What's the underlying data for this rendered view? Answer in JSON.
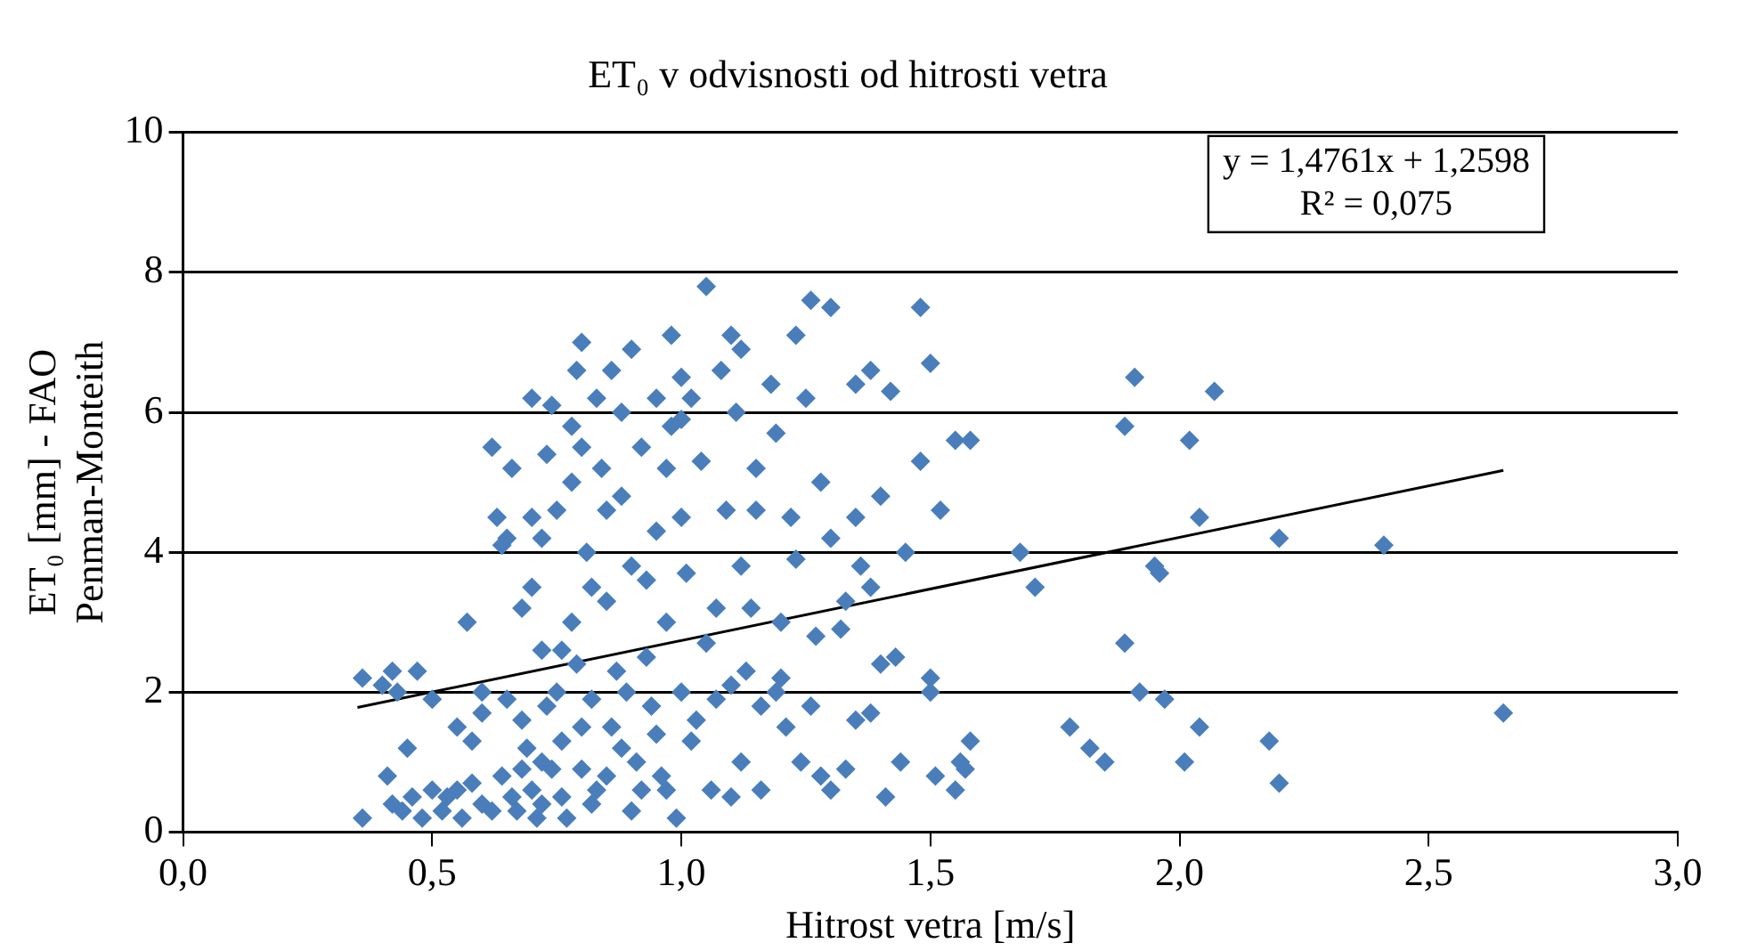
{
  "chart_data": {
    "type": "scatter",
    "title": "ET₀ v odvisnosti od hitrosti vetra",
    "xlabel": "Hitrost vetra [m/s]",
    "ylabel": "ET₀ [mm] - FAO Penman-Monteith",
    "xlim": [
      0,
      3
    ],
    "xticks": [
      {
        "value": 0,
        "label": "0,0"
      },
      {
        "value": 0.5,
        "label": "0,5"
      },
      {
        "value": 1,
        "label": "1,0"
      },
      {
        "value": 1.5,
        "label": "1,5"
      },
      {
        "value": 2,
        "label": "2,0"
      },
      {
        "value": 2.5,
        "label": "2,5"
      },
      {
        "value": 3,
        "label": "3,0"
      }
    ],
    "ylim": [
      0,
      10
    ],
    "yticks": [
      0,
      2,
      4,
      6,
      8,
      10
    ],
    "grid": "y",
    "legend": false,
    "marker": "diamond",
    "annotations": [
      "y = 1,4761x + 1,2598",
      "R² = 0,075"
    ],
    "series": [
      {
        "type": "scatter",
        "color": "#4a7ebb",
        "x": [
          0.36,
          0.36,
          0.4,
          0.42,
          0.43,
          0.41,
          0.42,
          0.44,
          0.45,
          0.46,
          0.47,
          0.48,
          0.5,
          0.5,
          0.52,
          0.53,
          0.55,
          0.55,
          0.56,
          0.57,
          0.58,
          0.58,
          0.6,
          0.6,
          0.6,
          0.62,
          0.63,
          0.64,
          0.65,
          0.66,
          0.67,
          0.68,
          0.68,
          0.7,
          0.7,
          0.7,
          0.71,
          0.72,
          0.72,
          0.73,
          0.74,
          0.75,
          0.75,
          0.76,
          0.78,
          0.78,
          0.79,
          0.8,
          0.8,
          0.8,
          0.81,
          0.82,
          0.83,
          0.84,
          0.85,
          0.85,
          0.86,
          0.87,
          0.88,
          0.88,
          0.9,
          0.9,
          0.9,
          0.92,
          0.93,
          0.94,
          0.95,
          0.95,
          0.96,
          0.97,
          0.98,
          0.98,
          0.99,
          1.0,
          1.0,
          1.0,
          1.01,
          1.02,
          1.04,
          1.05,
          1.05,
          1.06,
          1.08,
          1.09,
          1.1,
          1.1,
          1.12,
          1.12,
          1.14,
          1.15,
          1.16,
          1.18,
          1.19,
          1.2,
          1.21,
          1.22,
          1.23,
          1.25,
          1.26,
          1.27,
          1.28,
          1.3,
          1.3,
          1.32,
          1.33,
          1.35,
          1.36,
          1.38,
          1.38,
          1.4,
          1.41,
          1.42,
          1.43,
          1.44,
          1.48,
          1.48,
          1.5,
          1.5,
          1.51,
          1.52,
          1.55,
          1.56,
          1.57,
          1.58,
          1.58,
          1.55,
          1.68,
          1.71,
          1.78,
          1.82,
          1.85,
          1.89,
          1.89,
          1.91,
          1.92,
          1.95,
          1.96,
          1.97,
          2.01,
          2.02,
          2.04,
          2.04,
          2.07,
          2.18,
          2.2,
          2.2,
          2.41,
          2.65,
          0.62,
          0.64,
          0.65,
          0.66,
          0.69,
          0.7,
          0.72,
          0.73,
          0.74,
          0.76,
          0.77,
          0.79,
          0.8,
          0.82,
          0.83,
          0.86,
          0.89,
          0.91,
          0.92,
          0.95,
          0.97,
          1.03,
          1.07,
          1.1,
          1.13,
          1.16,
          1.19,
          1.24,
          1.26,
          1.3,
          1.35,
          1.4,
          1.33,
          1.2,
          1.12,
          1.07,
          0.93,
          0.82,
          0.76,
          0.68,
          0.72,
          0.85,
          0.97,
          1.0,
          1.15,
          1.28,
          1.35,
          1.23,
          0.88,
          0.78,
          1.02,
          1.11,
          1.5,
          1.45,
          1.38
        ],
        "values": [
          0.2,
          2.2,
          2.1,
          2.3,
          2.0,
          0.8,
          0.4,
          0.3,
          1.2,
          0.5,
          2.3,
          0.2,
          1.9,
          0.6,
          0.3,
          0.5,
          0.6,
          1.5,
          0.2,
          3.0,
          0.7,
          1.3,
          0.4,
          2.0,
          1.7,
          5.5,
          4.5,
          4.1,
          4.2,
          5.2,
          0.3,
          0.9,
          1.6,
          6.2,
          3.5,
          4.5,
          0.2,
          2.6,
          1.0,
          5.4,
          6.1,
          4.6,
          2.0,
          0.5,
          3.0,
          5.0,
          6.6,
          7.0,
          5.5,
          1.5,
          4.0,
          0.4,
          6.2,
          5.2,
          3.3,
          0.8,
          6.6,
          2.3,
          4.8,
          1.2,
          6.9,
          3.8,
          0.3,
          5.5,
          2.5,
          1.8,
          6.2,
          4.3,
          0.8,
          3.0,
          7.1,
          5.8,
          0.2,
          6.5,
          4.5,
          2.0,
          3.7,
          1.3,
          5.3,
          7.8,
          2.7,
          0.6,
          6.6,
          4.6,
          7.1,
          2.1,
          6.9,
          1.0,
          3.2,
          4.6,
          0.6,
          6.4,
          5.7,
          2.2,
          1.5,
          4.5,
          7.1,
          6.2,
          7.6,
          2.8,
          0.8,
          7.5,
          4.2,
          2.9,
          0.9,
          6.4,
          3.8,
          6.6,
          1.7,
          4.8,
          0.5,
          6.3,
          2.5,
          1.0,
          7.5,
          5.3,
          6.7,
          2.2,
          0.8,
          4.6,
          5.6,
          1.0,
          0.9,
          5.6,
          1.3,
          0.6,
          4.0,
          3.5,
          1.5,
          1.2,
          1.0,
          5.8,
          2.7,
          6.5,
          2.0,
          3.8,
          3.7,
          1.9,
          1.0,
          5.6,
          1.5,
          4.5,
          6.3,
          1.3,
          4.2,
          0.7,
          4.1,
          1.7,
          0.3,
          0.8,
          1.9,
          0.5,
          1.2,
          0.6,
          0.4,
          1.8,
          0.9,
          1.3,
          0.2,
          2.4,
          0.9,
          1.9,
          0.6,
          1.5,
          2.0,
          1.0,
          0.6,
          1.4,
          0.6,
          1.6,
          1.9,
          0.5,
          2.3,
          1.8,
          2.0,
          1.0,
          1.8,
          0.6,
          1.6,
          2.4,
          3.3,
          3.0,
          3.8,
          3.2,
          3.6,
          3.5,
          2.6,
          3.2,
          4.2,
          4.6,
          5.2,
          5.9,
          5.2,
          5.0,
          4.5,
          3.9,
          6.0,
          5.8,
          6.2,
          6.0,
          2.0,
          4.0,
          3.5
        ]
      },
      {
        "type": "line",
        "color": "#000000",
        "marker": "none",
        "x": [
          0.35,
          2.65
        ],
        "values": [
          1.78,
          5.17
        ]
      }
    ]
  }
}
